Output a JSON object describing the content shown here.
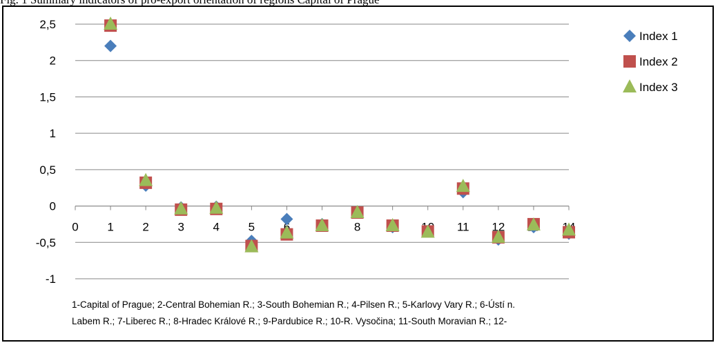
{
  "figure": {
    "caption": "Fig. 1 Summary indicators of pro-export orientation of regions Capital of Prague",
    "footnote_line1": "1-Capital of Prague; 2-Central Bohemian R.; 3-South Bohemian R.; 4-Pilsen R.; 5-Karlovy Vary R.; 6-Ústí n.",
    "footnote_line2": "Labem R.; 7-Liberec R.; 8-Hradec Králové R.; 9-Pardubice R.; 10-R. Vysočina; 11-South Moravian R.; 12-"
  },
  "chart_data": {
    "type": "scatter",
    "x": [
      1,
      2,
      3,
      4,
      5,
      6,
      7,
      8,
      9,
      10,
      11,
      12,
      13,
      14
    ],
    "xlim": [
      0,
      14
    ],
    "ylim": [
      -1,
      2.5
    ],
    "x_ticks": [
      "0",
      "1",
      "2",
      "3",
      "4",
      "5",
      "6",
      "7",
      "8",
      "9",
      "10",
      "11",
      "12",
      "13",
      "14"
    ],
    "y_ticks": [
      {
        "value": 2.5,
        "label": "2,5"
      },
      {
        "value": 2,
        "label": "2"
      },
      {
        "value": 1.5,
        "label": "1,5"
      },
      {
        "value": 1,
        "label": "1"
      },
      {
        "value": 0.5,
        "label": "0,5"
      },
      {
        "value": 0,
        "label": "0"
      },
      {
        "value": -0.5,
        "label": "-0,5"
      },
      {
        "value": -1,
        "label": "-1"
      }
    ],
    "grid": true,
    "legend_position": "right",
    "series": [
      {
        "name": "Index 1",
        "marker": "diamond",
        "color": "#4A7EBB",
        "values": [
          2.2,
          0.28,
          -0.02,
          -0.01,
          -0.48,
          -0.18,
          -0.25,
          -0.09,
          -0.29,
          -0.35,
          0.19,
          -0.46,
          -0.29,
          -0.38
        ]
      },
      {
        "name": "Index 2",
        "marker": "square",
        "color": "#C0504D",
        "values": [
          2.48,
          0.32,
          -0.05,
          -0.04,
          -0.55,
          -0.39,
          -0.27,
          -0.09,
          -0.27,
          -0.35,
          0.24,
          -0.43,
          -0.25,
          -0.36
        ]
      },
      {
        "name": "Index 3",
        "marker": "triangle",
        "color": "#9BBB59",
        "values": [
          2.5,
          0.35,
          -0.04,
          -0.03,
          -0.56,
          -0.37,
          -0.27,
          -0.09,
          -0.27,
          -0.36,
          0.27,
          -0.43,
          -0.26,
          -0.33
        ]
      }
    ]
  }
}
